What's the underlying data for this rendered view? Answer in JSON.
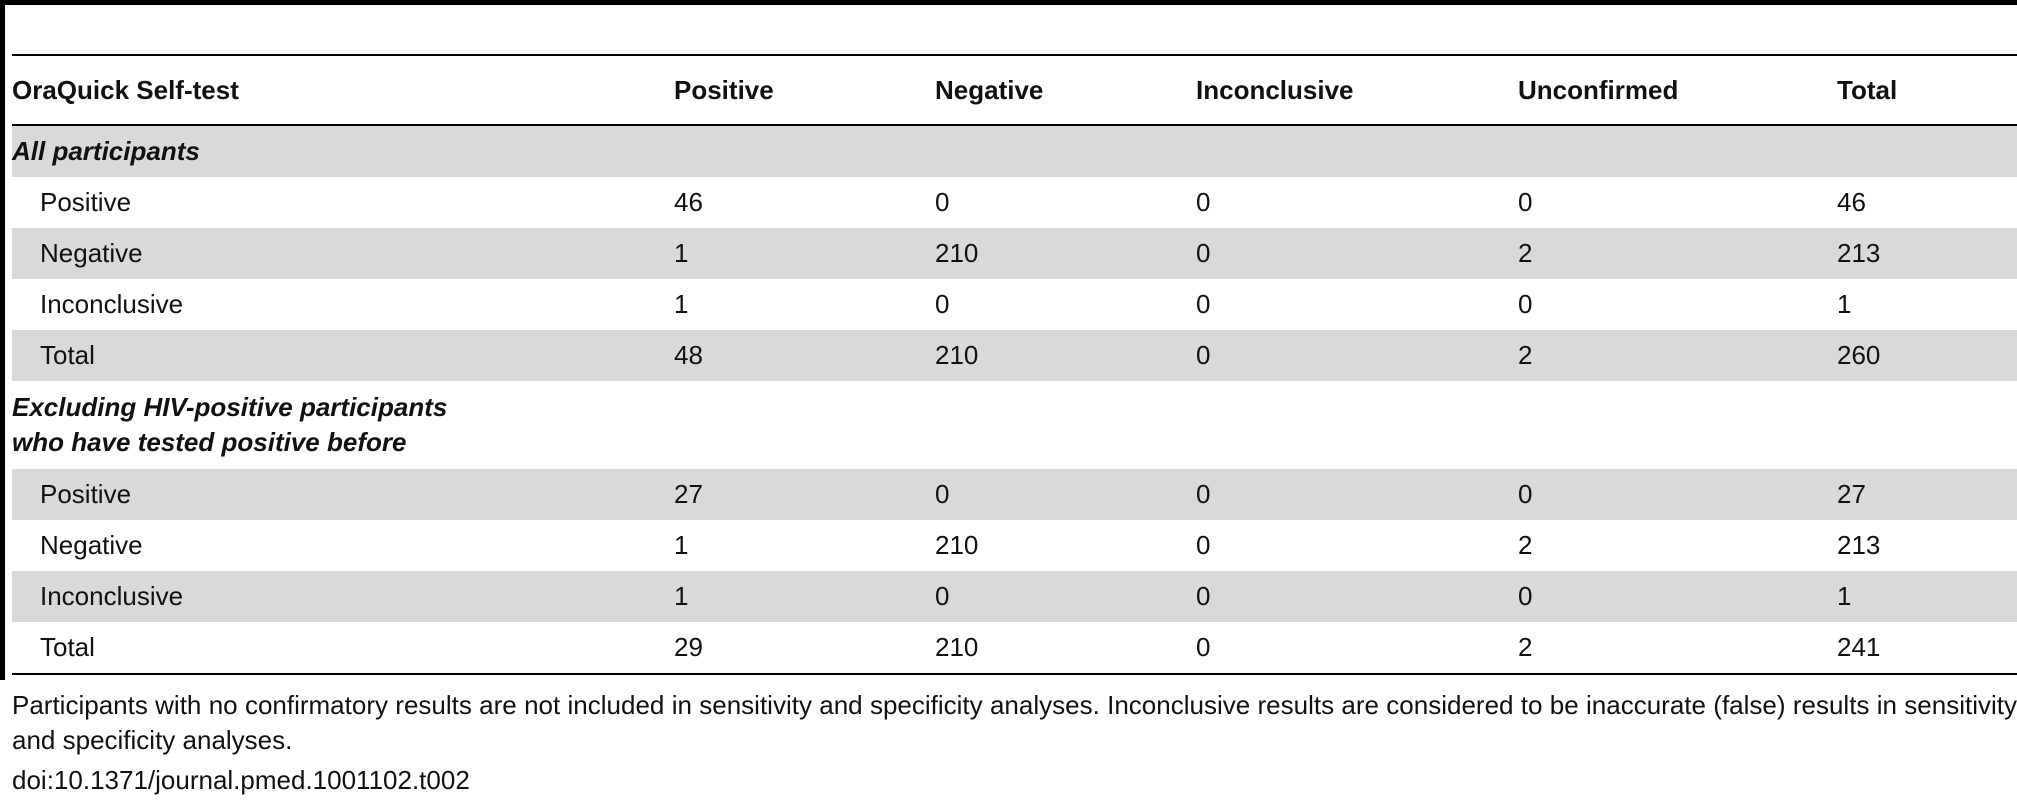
{
  "table": {
    "headers": [
      "OraQuick Self-test",
      "Positive",
      "Negative",
      "Inconclusive",
      "Unconfirmed",
      "Total"
    ],
    "sections": [
      {
        "title": "All participants",
        "rows": [
          [
            "Positive",
            "46",
            "0",
            "0",
            "0",
            "46"
          ],
          [
            "Negative",
            "1",
            "210",
            "0",
            "2",
            "213"
          ],
          [
            "Inconclusive",
            "1",
            "0",
            "0",
            "0",
            "1"
          ],
          [
            "Total",
            "48",
            "210",
            "0",
            "2",
            "260"
          ]
        ]
      },
      {
        "title_line1": "Excluding HIV-positive participants",
        "title_line2": "who have tested positive before",
        "rows": [
          [
            "Positive",
            "27",
            "0",
            "0",
            "0",
            "27"
          ],
          [
            "Negative",
            "1",
            "210",
            "0",
            "2",
            "213"
          ],
          [
            "Inconclusive",
            "1",
            "0",
            "0",
            "0",
            "1"
          ],
          [
            "Total",
            "29",
            "210",
            "0",
            "2",
            "241"
          ]
        ]
      }
    ]
  },
  "footnote": "Participants with no confirmatory results are not included in sensitivity and specificity analyses. Inconclusive results are considered to be inaccurate (false) results in sensitivity and specificity analyses.",
  "doi": "doi:10.1371/journal.pmed.1001102.t002"
}
